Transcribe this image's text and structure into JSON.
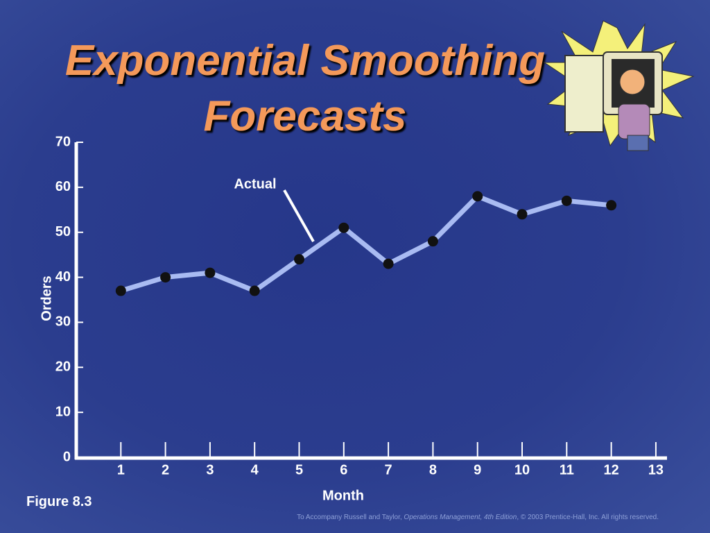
{
  "chart_data": {
    "type": "line",
    "title": "Exponential Smoothing Forecasts",
    "x_label": "Month",
    "y_label": "Orders",
    "x": [
      1,
      2,
      3,
      4,
      5,
      6,
      7,
      8,
      9,
      10,
      11,
      12
    ],
    "series": [
      {
        "name": "Actual",
        "color": "#a9bbf2",
        "values": [
          37,
          40,
          41,
          37,
          44,
          51,
          43,
          48,
          58,
          54,
          57,
          56
        ]
      }
    ],
    "xlim": [
      0,
      13.25
    ],
    "xticks": [
      1,
      2,
      3,
      4,
      5,
      6,
      7,
      8,
      9,
      10,
      11,
      12,
      13
    ],
    "ylim": [
      0,
      70
    ],
    "yticks": [
      0,
      10,
      20,
      30,
      40,
      50,
      60,
      70
    ],
    "marker_color": "#111111",
    "figure_label": "Figure 8.3",
    "footer": {
      "before": "To Accompany Russell and Taylor, ",
      "italic": "Operations Management, 4th Edition",
      "after": ", © 2003 Prentice-Hall, Inc. All rights reserved."
    }
  }
}
